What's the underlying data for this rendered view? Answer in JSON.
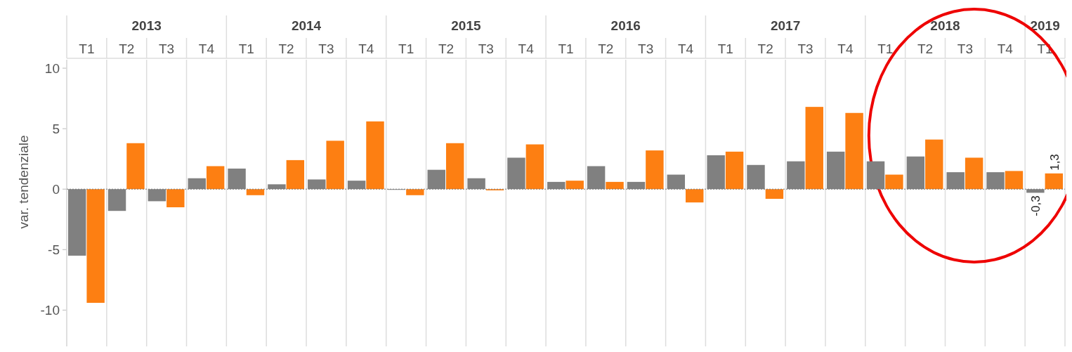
{
  "chart_data": {
    "type": "bar",
    "ylabel": "var. tendenziale",
    "categories": [
      "T1",
      "T2",
      "T3",
      "T4",
      "T1",
      "T2",
      "T3",
      "T4",
      "T1",
      "T2",
      "T3",
      "T4",
      "T1",
      "T2",
      "T3",
      "T4",
      "T1",
      "T2",
      "T3",
      "T4",
      "T1",
      "T2",
      "T3",
      "T4",
      "T1"
    ],
    "annotations": [
      "2013",
      "2014",
      "2015",
      "2016",
      "2017",
      "2018",
      "2019"
    ],
    "series": [
      {
        "color": "#808080",
        "values": [
          -5.5,
          -1.8,
          -1.0,
          0.9,
          1.7,
          0.4,
          0.8,
          0.7,
          0.0,
          1.6,
          0.9,
          2.6,
          0.6,
          1.9,
          0.6,
          1.2,
          2.8,
          2.0,
          2.3,
          3.1,
          2.3,
          2.7,
          1.4,
          1.4,
          -0.3
        ],
        "value_labels": [
          null,
          null,
          null,
          null,
          null,
          null,
          null,
          null,
          null,
          null,
          null,
          null,
          null,
          null,
          null,
          null,
          null,
          null,
          null,
          null,
          null,
          null,
          null,
          null,
          "-0,3"
        ]
      },
      {
        "color": "#fd7f12",
        "values": [
          -9.4,
          3.8,
          -1.5,
          1.9,
          -0.5,
          2.4,
          4.0,
          5.6,
          -0.5,
          3.8,
          -0.1,
          3.7,
          0.7,
          0.6,
          3.2,
          -1.1,
          3.1,
          -0.8,
          6.8,
          6.3,
          1.2,
          4.1,
          2.6,
          1.5,
          1.3
        ],
        "value_labels": [
          null,
          null,
          null,
          null,
          null,
          null,
          null,
          null,
          null,
          null,
          null,
          null,
          null,
          null,
          null,
          null,
          null,
          null,
          null,
          null,
          null,
          null,
          null,
          null,
          "1,3"
        ]
      }
    ],
    "ref_lines": [
      {
        "axis": "y",
        "value": 0,
        "color": "#777777",
        "line_style": "dotted"
      }
    ],
    "ylim": [
      -13,
      10.7
    ],
    "yticks": [
      -10,
      -5,
      0,
      5,
      10
    ],
    "grid": "x"
  }
}
